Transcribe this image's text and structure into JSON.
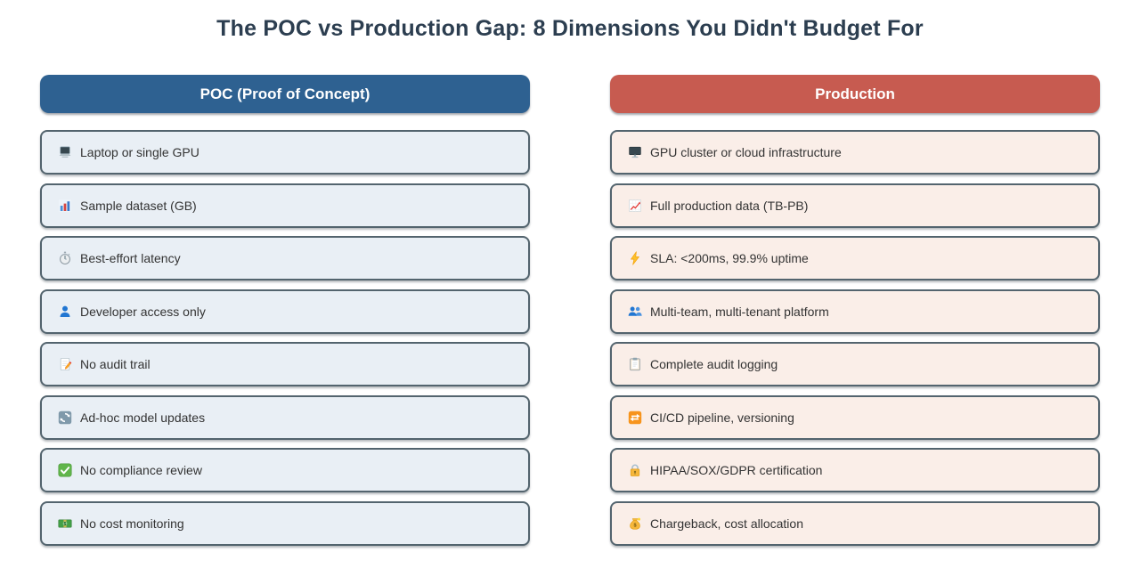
{
  "title": "The POC vs Production Gap: 8 Dimensions You Didn't Budget For",
  "colors": {
    "title_text": "#2c3e50",
    "header_text": "#ffffff",
    "poc_header_bg": "#2e6191",
    "prod_header_bg": "#c75b50",
    "poc_card_bg": "#e9eff5",
    "prod_card_bg": "#faeee8",
    "card_border": "#53646e",
    "row_text": "#333333"
  },
  "columns": [
    {
      "id": "poc",
      "header": "POC (Proof of Concept)",
      "rows": [
        {
          "icon": "laptop-icon",
          "label": "Laptop or single GPU"
        },
        {
          "icon": "bar-chart-icon",
          "label": "Sample dataset (GB)"
        },
        {
          "icon": "stopwatch-icon",
          "label": "Best-effort latency"
        },
        {
          "icon": "person-icon",
          "label": "Developer access only"
        },
        {
          "icon": "memo-icon",
          "label": "No audit trail"
        },
        {
          "icon": "refresh-icon",
          "label": "Ad-hoc model updates"
        },
        {
          "icon": "check-icon",
          "label": "No compliance review"
        },
        {
          "icon": "banknote-icon",
          "label": "No cost monitoring"
        }
      ]
    },
    {
      "id": "production",
      "header": "Production",
      "rows": [
        {
          "icon": "desktop-icon",
          "label": "GPU cluster or cloud infrastructure"
        },
        {
          "icon": "chart-up-icon",
          "label": "Full production data (TB-PB)"
        },
        {
          "icon": "lightning-icon",
          "label": "SLA: <200ms, 99.9% uptime"
        },
        {
          "icon": "people-icon",
          "label": "Multi-team, multi-tenant platform"
        },
        {
          "icon": "clipboard-icon",
          "label": "Complete audit logging"
        },
        {
          "icon": "repeat-icon",
          "label": "CI/CD pipeline, versioning"
        },
        {
          "icon": "lock-icon",
          "label": "HIPAA/SOX/GDPR certification"
        },
        {
          "icon": "moneybag-icon",
          "label": "Chargeback, cost allocation"
        }
      ]
    }
  ]
}
